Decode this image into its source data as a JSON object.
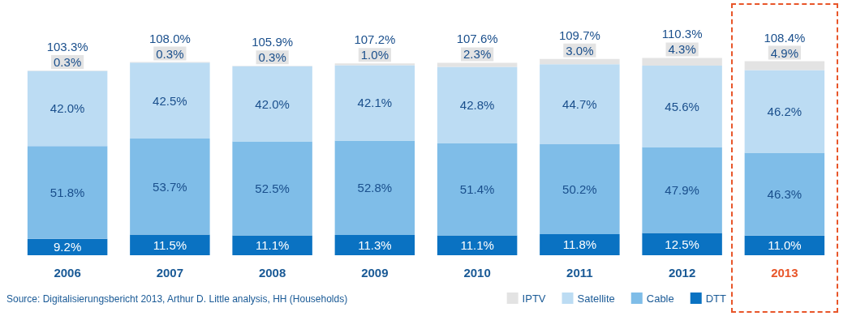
{
  "chart_data": {
    "type": "bar",
    "stacked": true,
    "categories": [
      "2006",
      "2007",
      "2008",
      "2009",
      "2010",
      "2011",
      "2012",
      "2013"
    ],
    "series": [
      {
        "name": "DTT",
        "color": "#0a72c2",
        "values": [
          9.2,
          11.5,
          11.1,
          11.3,
          11.1,
          11.8,
          12.5,
          11.0
        ],
        "value_labels": [
          "9.2%",
          "11.5%",
          "11.1%",
          "11.3%",
          "11.1%",
          "11.8%",
          "12.5%",
          "11.0%"
        ]
      },
      {
        "name": "Cable",
        "color": "#7fbde8",
        "values": [
          51.8,
          53.7,
          52.5,
          52.8,
          51.4,
          50.2,
          47.9,
          46.3
        ],
        "value_labels": [
          "51.8%",
          "53.7%",
          "52.5%",
          "52.8%",
          "51.4%",
          "50.2%",
          "47.9%",
          "46.3%"
        ]
      },
      {
        "name": "Satellite",
        "color": "#bcdcf3",
        "values": [
          42.0,
          42.5,
          42.0,
          42.1,
          42.8,
          44.7,
          45.6,
          46.2
        ],
        "value_labels": [
          "42.0%",
          "42.5%",
          "42.0%",
          "42.1%",
          "42.8%",
          "44.7%",
          "45.6%",
          "46.2%"
        ]
      },
      {
        "name": "IPTV",
        "color": "#e3e3e3",
        "values": [
          0.3,
          0.3,
          0.3,
          1.0,
          2.3,
          3.0,
          4.3,
          4.9
        ],
        "value_labels": [
          "0.3%",
          "0.3%",
          "0.3%",
          "1.0%",
          "2.3%",
          "3.0%",
          "4.3%",
          "4.9%"
        ]
      }
    ],
    "totals": [
      "103.3%",
      "108.0%",
      "105.9%",
      "107.2%",
      "107.6%",
      "109.7%",
      "110.3%",
      "108.4%"
    ],
    "legend": "bottom right",
    "annotations": [
      "Source: Digitalisierungsbericht 2013, Arthur D. Little analysis, HH (Households)"
    ]
  }
}
